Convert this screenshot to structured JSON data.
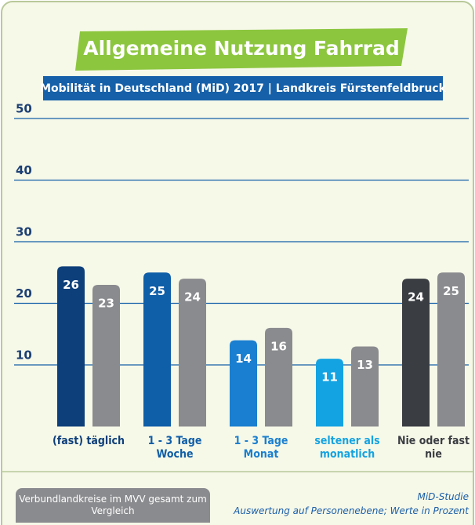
{
  "chart_data": {
    "type": "bar",
    "title": "Allgemeine Nutzung Fahrrad",
    "subtitle": "Mobilität in Deutschland (MiD) 2017 | Landkreis Fürstenfeldbruck",
    "categories": [
      "(fast) täglich",
      "1 - 3 Tage Woche",
      "1 - 3 Tage Monat",
      "seltener als monatlich",
      "Nie oder fast nie"
    ],
    "series": [
      {
        "name": "Landkreis Fürstenfeldbruck",
        "colors": [
          "#0d3f7a",
          "#0f5ea8",
          "#1a7fd0",
          "#14a3e2",
          "#3a3d42"
        ],
        "values": [
          26,
          25,
          14,
          11,
          24
        ]
      },
      {
        "name": "Verbundlandkreise im MVV gesamt zum Vergleich",
        "color": "#8a8b8e",
        "values": [
          23,
          24,
          16,
          13,
          25
        ]
      }
    ],
    "ylim": [
      0,
      50
    ],
    "yticks": [
      10,
      20,
      30,
      40,
      50
    ],
    "grid": true,
    "source": "MiD-Studie",
    "note": "Auswertung auf Personenebene; Werte in Prozent"
  }
}
